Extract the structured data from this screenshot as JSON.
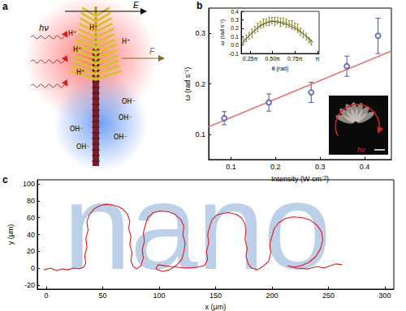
{
  "diagram": {
    "panel": "a",
    "field_label": "E",
    "force_label": "F",
    "light_label": "hν",
    "positive_ions": [
      "H⁺",
      "H⁺",
      "H⁺",
      "H⁺",
      "H⁺"
    ],
    "negative_ions": [
      "OH⁻",
      "OH⁻",
      "OH⁻",
      "OH⁻",
      "OH⁻"
    ]
  },
  "chart_data": [
    {
      "panel": "b",
      "type": "scatter",
      "x_label": "Intensity (W cm⁻²)",
      "y_label": "ω (rad s⁻¹)",
      "xlim": [
        0.05,
        0.46
      ],
      "ylim": [
        0.05,
        0.35
      ],
      "xticks": [
        0.1,
        0.2,
        0.3,
        0.4
      ],
      "yticks": [
        0.1,
        0.2,
        0.3
      ],
      "series": [
        {
          "type": "scatter",
          "marker": "open_circle",
          "color": "#4a56a8",
          "x": [
            0.085,
            0.185,
            0.28,
            0.36,
            0.43
          ],
          "values": [
            0.132,
            0.163,
            0.183,
            0.235,
            0.295
          ],
          "errors": [
            0.013,
            0.017,
            0.02,
            0.02,
            0.035
          ]
        },
        {
          "type": "line",
          "marker": "none",
          "color": "#e8766e",
          "x": [
            0.05,
            0.46
          ],
          "values": [
            0.115,
            0.265
          ]
        }
      ],
      "image_inset": {
        "label": "hν"
      },
      "inset": {
        "type": "line",
        "x_label": "θ (rad)",
        "y_label": "ω (rad s⁻¹)",
        "xlim": [
          0.47,
          3.2
        ],
        "ylim": [
          -0.1,
          0.4
        ],
        "xticks": [
          {
            "value": 0.7854,
            "label": "0.25π"
          },
          {
            "value": 1.5708,
            "label": "0.50π"
          },
          {
            "value": 2.3562,
            "label": "0.75π"
          },
          {
            "value": 3.1416,
            "label": "π"
          }
        ],
        "yticks": [
          -0.1,
          {
            "value": 0,
            "label": "0.0"
          },
          0.1,
          0.2,
          0.3,
          0.4
        ],
        "series": [
          {
            "type": "line",
            "marker": "none",
            "color": "#8c8c1e",
            "x": [
              0.55,
              0.65,
              0.75,
              0.85,
              0.95,
              1.05,
              1.15,
              1.25,
              1.35,
              1.45,
              1.55,
              1.65,
              1.75,
              1.85,
              1.95,
              2.05,
              2.15,
              2.25,
              2.35,
              2.45,
              2.55,
              2.65,
              2.75,
              2.85,
              2.92
            ],
            "values": [
              0.05,
              0.08,
              0.11,
              0.14,
              0.18,
              0.21,
              0.24,
              0.26,
              0.27,
              0.28,
              0.29,
              0.28,
              0.29,
              0.27,
              0.28,
              0.26,
              0.25,
              0.24,
              0.22,
              0.2,
              0.16,
              0.13,
              0.1,
              0.06,
              0.03
            ],
            "errors": [
              0.03,
              0.04,
              0.04,
              0.05,
              0.04,
              0.05,
              0.04,
              0.05,
              0.04,
              0.05,
              0.04,
              0.05,
              0.04,
              0.05,
              0.04,
              0.05,
              0.04,
              0.05,
              0.04,
              0.05,
              0.04,
              0.04,
              0.04,
              0.03,
              0.03
            ]
          },
          {
            "type": "line",
            "marker": "none",
            "color": "#3a3a3a",
            "x": [
              0.5,
              0.8,
              1.1,
              1.4,
              1.57,
              1.8,
              2.1,
              2.4,
              2.7,
              3.0
            ],
            "values": [
              0.02,
              0.13,
              0.22,
              0.27,
              0.28,
              0.27,
              0.24,
              0.19,
              0.12,
              0.03
            ]
          }
        ]
      }
    },
    {
      "panel": "c",
      "type": "line",
      "x_label": "x (μm)",
      "y_label": "y (μm)",
      "xlim": [
        -8,
        308
      ],
      "ylim": [
        -25,
        105
      ],
      "xticks": [
        0,
        50,
        100,
        150,
        200,
        250,
        300
      ],
      "yticks": [
        -20,
        0,
        20,
        40,
        60,
        80,
        100
      ],
      "annotations": [
        {
          "text": "nano",
          "color": "#bcd0ea"
        }
      ],
      "series": [
        {
          "type": "line",
          "marker": "none",
          "color": "#e01b1b",
          "x": [
            -2,
            4,
            9,
            14,
            19,
            24,
            29,
            33,
            35,
            34,
            36,
            35,
            37,
            36,
            38,
            42,
            47,
            53,
            59,
            64,
            68,
            72,
            74,
            73,
            75,
            74,
            76,
            75,
            77,
            80,
            84,
            86,
            85,
            87,
            86,
            88,
            90,
            95,
            101,
            108,
            114,
            119,
            122,
            121,
            123,
            122,
            120,
            115,
            109,
            103,
            97,
            99,
            110,
            124,
            133,
            140,
            143,
            142,
            144,
            143,
            145,
            147,
            151,
            156,
            162,
            168,
            173,
            176,
            177,
            176,
            178,
            177,
            179,
            182,
            187,
            192,
            197,
            199,
            198,
            200,
            202,
            206,
            212,
            219,
            227,
            234,
            240,
            244,
            245,
            243,
            239,
            233,
            226,
            218,
            214,
            222,
            232,
            240,
            246,
            252,
            257,
            262
          ],
          "values": [
            -2,
            0,
            -3,
            -1,
            -2,
            0,
            -1,
            1,
            6,
            15,
            25,
            35,
            45,
            55,
            63,
            70,
            74,
            76,
            75,
            73,
            70,
            64,
            56,
            47,
            38,
            28,
            18,
            9,
            2,
            -1,
            3,
            12,
            22,
            32,
            42,
            52,
            60,
            66,
            68,
            67,
            64,
            58,
            50,
            40,
            30,
            20,
            10,
            3,
            -2,
            -4,
            -1,
            4,
            2,
            0,
            1,
            3,
            10,
            20,
            30,
            40,
            50,
            58,
            63,
            65,
            66,
            64,
            60,
            53,
            44,
            34,
            24,
            14,
            5,
            0,
            -2,
            2,
            8,
            18,
            28,
            38,
            47,
            54,
            59,
            61,
            60,
            57,
            51,
            43,
            33,
            23,
            14,
            7,
            3,
            1,
            3,
            0,
            -1,
            2,
            0,
            3,
            5,
            4
          ]
        }
      ]
    }
  ]
}
